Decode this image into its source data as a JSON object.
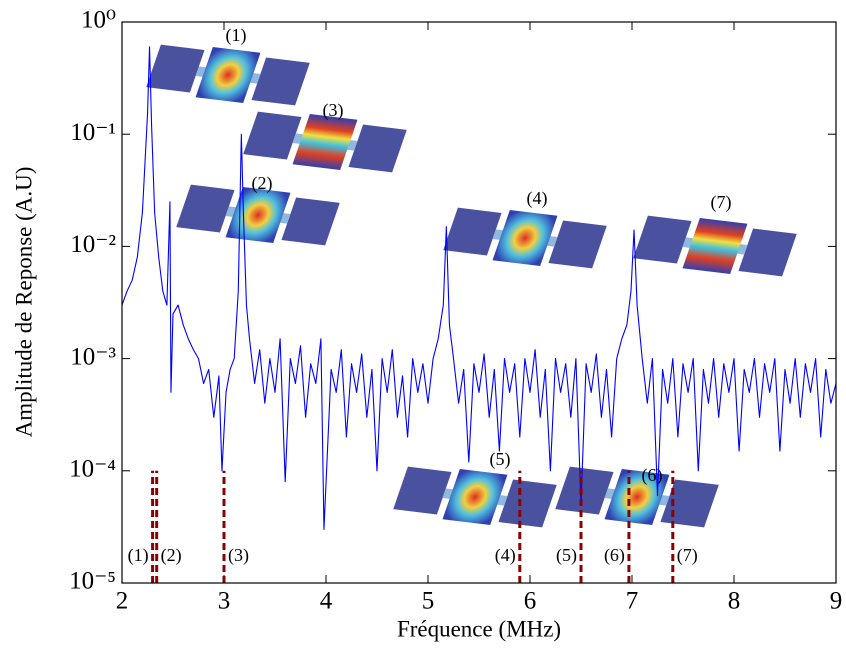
{
  "chart_data": {
    "type": "line",
    "xlabel": "Fréquence (MHz)",
    "ylabel": "Amplitude de Reponse (A.U)",
    "color": "#0000ff",
    "log_y": true,
    "xlim": [
      2,
      9
    ],
    "xticks": [
      2,
      3,
      4,
      5,
      6,
      7,
      8,
      9
    ],
    "ylim": [
      1e-05,
      1
    ],
    "yticks": [
      {
        "value": 1e-05,
        "label": "10⁻⁵"
      },
      {
        "value": 0.0001,
        "label": "10⁻⁴"
      },
      {
        "value": 0.001,
        "label": "10⁻³"
      },
      {
        "value": 0.01,
        "label": "10⁻²"
      },
      {
        "value": 0.1,
        "label": "10⁻¹"
      },
      {
        "value": 1,
        "label": "10⁰"
      }
    ],
    "x": [
      2.0,
      2.05,
      2.1,
      2.15,
      2.2,
      2.25,
      2.27,
      2.29,
      2.32,
      2.36,
      2.4,
      2.44,
      2.47,
      2.48,
      2.5,
      2.55,
      2.6,
      2.65,
      2.7,
      2.75,
      2.8,
      2.85,
      2.9,
      2.95,
      2.98,
      3.02,
      3.06,
      3.1,
      3.14,
      3.17,
      3.19,
      3.22,
      3.25,
      3.3,
      3.35,
      3.4,
      3.45,
      3.5,
      3.55,
      3.6,
      3.65,
      3.7,
      3.75,
      3.8,
      3.85,
      3.9,
      3.95,
      3.98,
      4.05,
      4.1,
      4.15,
      4.2,
      4.25,
      4.3,
      4.35,
      4.4,
      4.45,
      4.5,
      4.55,
      4.6,
      4.65,
      4.7,
      4.75,
      4.8,
      4.85,
      4.9,
      4.95,
      5.0,
      5.05,
      5.1,
      5.15,
      5.18,
      5.21,
      5.25,
      5.3,
      5.35,
      5.4,
      5.45,
      5.5,
      5.55,
      5.6,
      5.65,
      5.7,
      5.75,
      5.8,
      5.85,
      5.9,
      5.95,
      6.0,
      6.05,
      6.1,
      6.15,
      6.2,
      6.25,
      6.3,
      6.35,
      6.4,
      6.45,
      6.5,
      6.55,
      6.6,
      6.65,
      6.7,
      6.75,
      6.8,
      6.85,
      6.9,
      6.95,
      6.99,
      7.02,
      7.05,
      7.1,
      7.15,
      7.2,
      7.25,
      7.3,
      7.35,
      7.4,
      7.45,
      7.5,
      7.55,
      7.6,
      7.65,
      7.7,
      7.75,
      7.8,
      7.85,
      7.9,
      7.95,
      8.0,
      8.05,
      8.1,
      8.15,
      8.2,
      8.25,
      8.3,
      8.35,
      8.4,
      8.45,
      8.5,
      8.55,
      8.6,
      8.65,
      8.7,
      8.75,
      8.8,
      8.85,
      8.9,
      8.95,
      9.0
    ],
    "values": [
      0.003,
      0.004,
      0.005,
      0.008,
      0.02,
      0.15,
      0.6,
      0.12,
      0.02,
      0.008,
      0.004,
      0.003,
      0.025,
      0.0005,
      0.0025,
      0.003,
      0.002,
      0.0015,
      0.0012,
      0.001,
      0.0006,
      0.0008,
      0.0003,
      0.0007,
      0.0001,
      0.0005,
      0.0008,
      0.001,
      0.004,
      0.1,
      0.02,
      0.003,
      0.0015,
      0.0006,
      0.0012,
      0.0004,
      0.001,
      0.0005,
      0.0015,
      8e-05,
      0.001,
      0.0006,
      0.0013,
      0.0003,
      0.0009,
      0.0006,
      0.0015,
      3e-05,
      0.0008,
      0.0005,
      0.0012,
      0.0002,
      0.0009,
      0.0005,
      0.0011,
      0.0003,
      0.0008,
      0.0001,
      0.001,
      0.0005,
      0.0012,
      0.0003,
      0.0007,
      0.0002,
      0.001,
      0.0005,
      0.0009,
      0.0004,
      0.001,
      0.0015,
      0.003,
      0.015,
      0.002,
      0.001,
      0.0004,
      0.0008,
      0.00012,
      0.0009,
      0.0005,
      0.0011,
      0.0003,
      0.0008,
      0.00015,
      0.001,
      0.0005,
      0.0009,
      0.0002,
      0.001,
      0.0005,
      0.0012,
      0.0003,
      0.0008,
      0.0001,
      0.001,
      0.0005,
      0.0009,
      0.0003,
      0.001,
      5e-05,
      0.0009,
      0.0005,
      0.0011,
      0.0003,
      0.0008,
      0.0002,
      0.001,
      0.0015,
      0.002,
      0.004,
      0.014,
      0.003,
      0.001,
      0.0004,
      0.001,
      6e-05,
      0.0008,
      0.0004,
      0.001,
      0.0002,
      0.0009,
      0.0005,
      0.001,
      0.0001,
      0.0008,
      0.0004,
      0.001,
      0.0003,
      0.0009,
      0.0005,
      0.001,
      0.00015,
      0.0008,
      0.0005,
      0.001,
      0.0003,
      0.0009,
      0.0005,
      0.001,
      0.00015,
      0.0008,
      0.0004,
      0.001,
      0.0003,
      0.0009,
      0.0005,
      0.001,
      0.0002,
      0.0008,
      0.0004,
      0.0006
    ],
    "marker_lines": {
      "color": "#8b0000",
      "x": [
        2.3,
        2.34,
        3.0,
        5.9,
        6.5,
        6.97,
        7.4
      ],
      "top": [
        0.0001,
        0.0001,
        0.0001,
        0.0001,
        0.0001,
        0.0001,
        0.0001
      ],
      "labels": [
        "(1)",
        "(2)",
        "(3)",
        "(4)",
        "(5)",
        "(6)",
        "(7)"
      ]
    },
    "inset_labels": [
      "(1)",
      "(3)",
      "(2)",
      "(4)",
      "(7)",
      "(5)",
      "(6)"
    ]
  }
}
